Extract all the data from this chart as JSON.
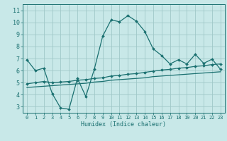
{
  "xlabel": "Humidex (Indice chaleur)",
  "bg_color": "#c8e8e8",
  "grid_color": "#a0c8c8",
  "line_color": "#1a7070",
  "xlim": [
    -0.5,
    23.5
  ],
  "ylim": [
    2.5,
    11.5
  ],
  "xticks": [
    0,
    1,
    2,
    3,
    4,
    5,
    6,
    7,
    8,
    9,
    10,
    11,
    12,
    13,
    14,
    15,
    16,
    17,
    18,
    19,
    20,
    21,
    22,
    23
  ],
  "yticks": [
    3,
    4,
    5,
    6,
    7,
    8,
    9,
    10,
    11
  ],
  "line1_x": [
    0,
    1,
    2,
    3,
    4,
    5,
    6,
    7,
    8,
    9,
    10,
    11,
    12,
    13,
    14,
    15,
    16,
    17,
    18,
    19,
    20,
    21,
    22,
    23
  ],
  "line1_y": [
    6.9,
    6.0,
    6.2,
    4.1,
    2.9,
    2.8,
    5.35,
    3.85,
    6.1,
    8.85,
    10.2,
    10.05,
    10.55,
    10.1,
    9.25,
    7.8,
    7.25,
    6.55,
    6.9,
    6.55,
    7.35,
    6.6,
    6.95,
    6.1
  ],
  "line2_x": [
    0,
    1,
    2,
    3,
    4,
    5,
    6,
    7,
    8,
    9,
    10,
    11,
    12,
    13,
    14,
    15,
    16,
    17,
    18,
    19,
    20,
    21,
    22,
    23
  ],
  "line2_y": [
    4.9,
    5.0,
    5.1,
    5.0,
    5.05,
    5.1,
    5.2,
    5.25,
    5.35,
    5.4,
    5.55,
    5.6,
    5.7,
    5.75,
    5.85,
    5.95,
    6.05,
    6.1,
    6.2,
    6.25,
    6.35,
    6.4,
    6.5,
    6.55
  ],
  "line3_x": [
    0,
    1,
    2,
    3,
    4,
    5,
    6,
    7,
    8,
    9,
    10,
    11,
    12,
    13,
    14,
    15,
    16,
    17,
    18,
    19,
    20,
    21,
    22,
    23
  ],
  "line3_y": [
    4.6,
    4.65,
    4.7,
    4.75,
    4.8,
    4.85,
    4.9,
    4.95,
    5.05,
    5.1,
    5.2,
    5.25,
    5.3,
    5.35,
    5.4,
    5.5,
    5.55,
    5.6,
    5.65,
    5.7,
    5.75,
    5.8,
    5.85,
    5.9
  ]
}
